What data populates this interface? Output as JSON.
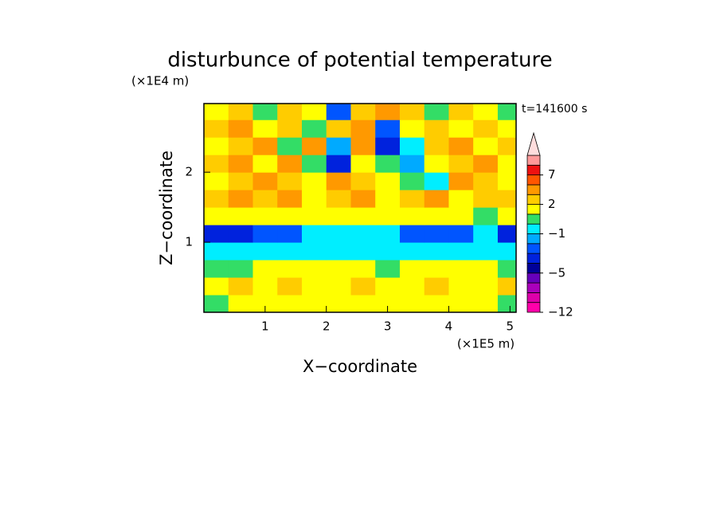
{
  "chart_data": {
    "type": "contour",
    "title": "disturbunce of potential temperature",
    "x_label": "X−coordinate",
    "y_label": "Z−coordinate",
    "x_unit": "(×1E5 m)",
    "y_unit": "(×1E4 m)",
    "annotation": "t=141600 s",
    "xlim": [
      0,
      5.1
    ],
    "ylim": [
      0,
      2.98
    ],
    "xticks": [
      1,
      2,
      3,
      4,
      5
    ],
    "yticks": [
      1,
      2
    ],
    "x_edges": [
      0,
      0.4,
      0.8,
      1.2,
      1.6,
      2.0,
      2.4,
      2.8,
      3.2,
      3.6,
      4.0,
      4.4,
      4.8,
      5.1
    ],
    "z_edges": [
      0,
      0.25,
      0.5,
      0.75,
      1.0,
      1.25,
      1.5,
      1.75,
      2.0,
      2.25,
      2.5,
      2.75,
      2.98
    ],
    "field": [
      [
        0.5,
        1.5,
        1.5,
        1.5,
        1.5,
        1.5,
        1.5,
        1.5,
        1.5,
        1.5,
        1.5,
        1.5,
        0.5
      ],
      [
        1.5,
        2.5,
        1.5,
        2.5,
        1.5,
        1.5,
        2.5,
        1.5,
        1.5,
        2.5,
        1.5,
        1.5,
        2.5
      ],
      [
        0.5,
        0.5,
        1.5,
        1.5,
        1.5,
        1.5,
        1.5,
        0.5,
        1.5,
        1.5,
        1.5,
        1.5,
        0.5
      ],
      [
        -0.5,
        -0.5,
        -0.5,
        -0.5,
        -0.5,
        -0.5,
        -0.5,
        -0.5,
        -0.5,
        -0.5,
        -0.5,
        -0.5,
        -0.5
      ],
      [
        -4,
        -4,
        -3,
        -3,
        -0.5,
        -0.5,
        -0.5,
        -0.5,
        -3,
        -3,
        -3,
        -0.5,
        -4
      ],
      [
        1.5,
        1,
        1.5,
        1.5,
        1.5,
        1.5,
        1.5,
        1.5,
        1.5,
        1.5,
        1.5,
        0.5,
        1
      ],
      [
        2.5,
        3,
        2,
        3,
        1.5,
        2,
        3,
        1.5,
        2,
        3,
        1,
        2,
        2.5
      ],
      [
        1,
        2,
        3,
        2,
        1.5,
        3,
        2,
        1,
        0.5,
        -1,
        3,
        2,
        1
      ],
      [
        2,
        3,
        1.5,
        3,
        0.5,
        -4,
        1,
        0.5,
        -2,
        1,
        2,
        3,
        1.5
      ],
      [
        1.5,
        2,
        3,
        0.5,
        3,
        -2,
        3,
        -4,
        -1,
        2,
        3,
        1,
        2
      ],
      [
        2,
        3,
        1,
        2,
        0.5,
        2,
        3,
        -3,
        1,
        2,
        1.5,
        2,
        1
      ],
      [
        1,
        2,
        0.5,
        2,
        1.5,
        -3,
        2,
        3,
        2,
        0.5,
        2,
        1,
        0.5
      ]
    ],
    "levels": [
      -12,
      -10,
      -8,
      -6,
      -5,
      -4,
      -3,
      -2,
      -1,
      0,
      1,
      2,
      3,
      5,
      7,
      9,
      11
    ],
    "colors": [
      "#ff00aa",
      "#dd00aa",
      "#aa00bb",
      "#6600bb",
      "#000099",
      "#0022dd",
      "#0055ff",
      "#00aaff",
      "#00eeff",
      "#33dd66",
      "#ffff00",
      "#ffcc00",
      "#ff9900",
      "#ff5500",
      "#ee1111",
      "#ff9999"
    ],
    "extend_color": "#ffdddd",
    "colorbar_ticks": [
      {
        "value": -12,
        "label": "−12"
      },
      {
        "value": -5,
        "label": "−5"
      },
      {
        "value": -1,
        "label": "−1"
      },
      2,
      7
    ]
  }
}
